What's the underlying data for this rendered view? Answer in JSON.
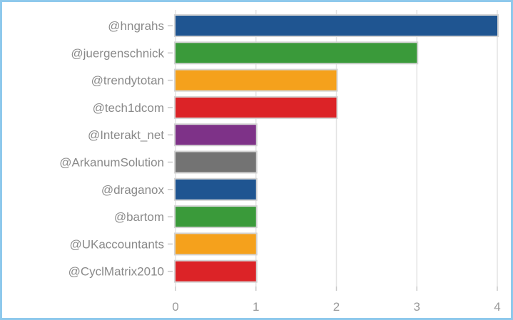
{
  "chart_data": {
    "type": "bar",
    "orientation": "horizontal",
    "categories": [
      "@hngrahs",
      "@juergenschnick",
      "@trendytotan",
      "@tech1dcom",
      "@Interakt_net",
      "@ArkanumSolution",
      "@draganox",
      "@bartom",
      "@UKaccountants",
      "@CyclMatrix2010"
    ],
    "values": [
      4,
      3,
      2,
      2,
      1,
      1,
      1,
      1,
      1,
      1
    ],
    "colors": [
      "#1f5591",
      "#3a9a3a",
      "#f5a11c",
      "#dc2327",
      "#7e3288",
      "#737373",
      "#1f5591",
      "#3a9a3a",
      "#f5a11c",
      "#dc2327"
    ],
    "xlim": [
      0,
      4
    ],
    "xticks": [
      "0",
      "1",
      "2",
      "3",
      "4"
    ],
    "grid": "vertical",
    "title": "",
    "xlabel": "",
    "ylabel": ""
  }
}
